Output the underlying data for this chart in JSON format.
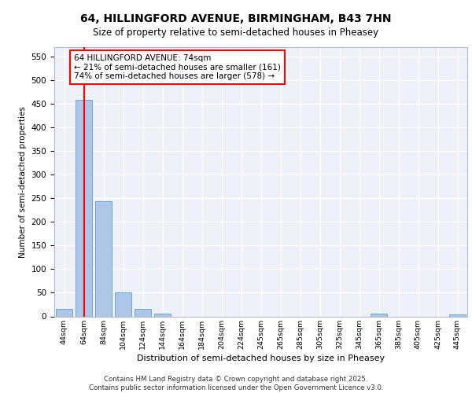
{
  "title_line1": "64, HILLINGFORD AVENUE, BIRMINGHAM, B43 7HN",
  "title_line2": "Size of property relative to semi-detached houses in Pheasey",
  "xlabel": "Distribution of semi-detached houses by size in Pheasey",
  "ylabel": "Number of semi-detached properties",
  "categories": [
    "44sqm",
    "64sqm",
    "84sqm",
    "104sqm",
    "124sqm",
    "144sqm",
    "164sqm",
    "184sqm",
    "204sqm",
    "224sqm",
    "245sqm",
    "265sqm",
    "285sqm",
    "305sqm",
    "325sqm",
    "345sqm",
    "365sqm",
    "385sqm",
    "405sqm",
    "425sqm",
    "445sqm"
  ],
  "values": [
    15,
    458,
    243,
    50,
    15,
    5,
    0,
    0,
    0,
    0,
    0,
    0,
    0,
    0,
    0,
    0,
    5,
    0,
    0,
    0,
    4
  ],
  "bar_color": "#aec6e8",
  "bar_edge_color": "#5a9fd4",
  "subject_label": "64 HILLINGFORD AVENUE: 74sqm",
  "pct_smaller": 21,
  "pct_smaller_count": 161,
  "pct_larger": 74,
  "pct_larger_count": 578,
  "ylim": [
    0,
    570
  ],
  "yticks": [
    0,
    50,
    100,
    150,
    200,
    250,
    300,
    350,
    400,
    450,
    500,
    550
  ],
  "bg_color": "#eef2f8",
  "grid_color": "#ffffff",
  "footer_text": "Contains HM Land Registry data © Crown copyright and database right 2025.\nContains public sector information licensed under the Open Government Licence v3.0."
}
